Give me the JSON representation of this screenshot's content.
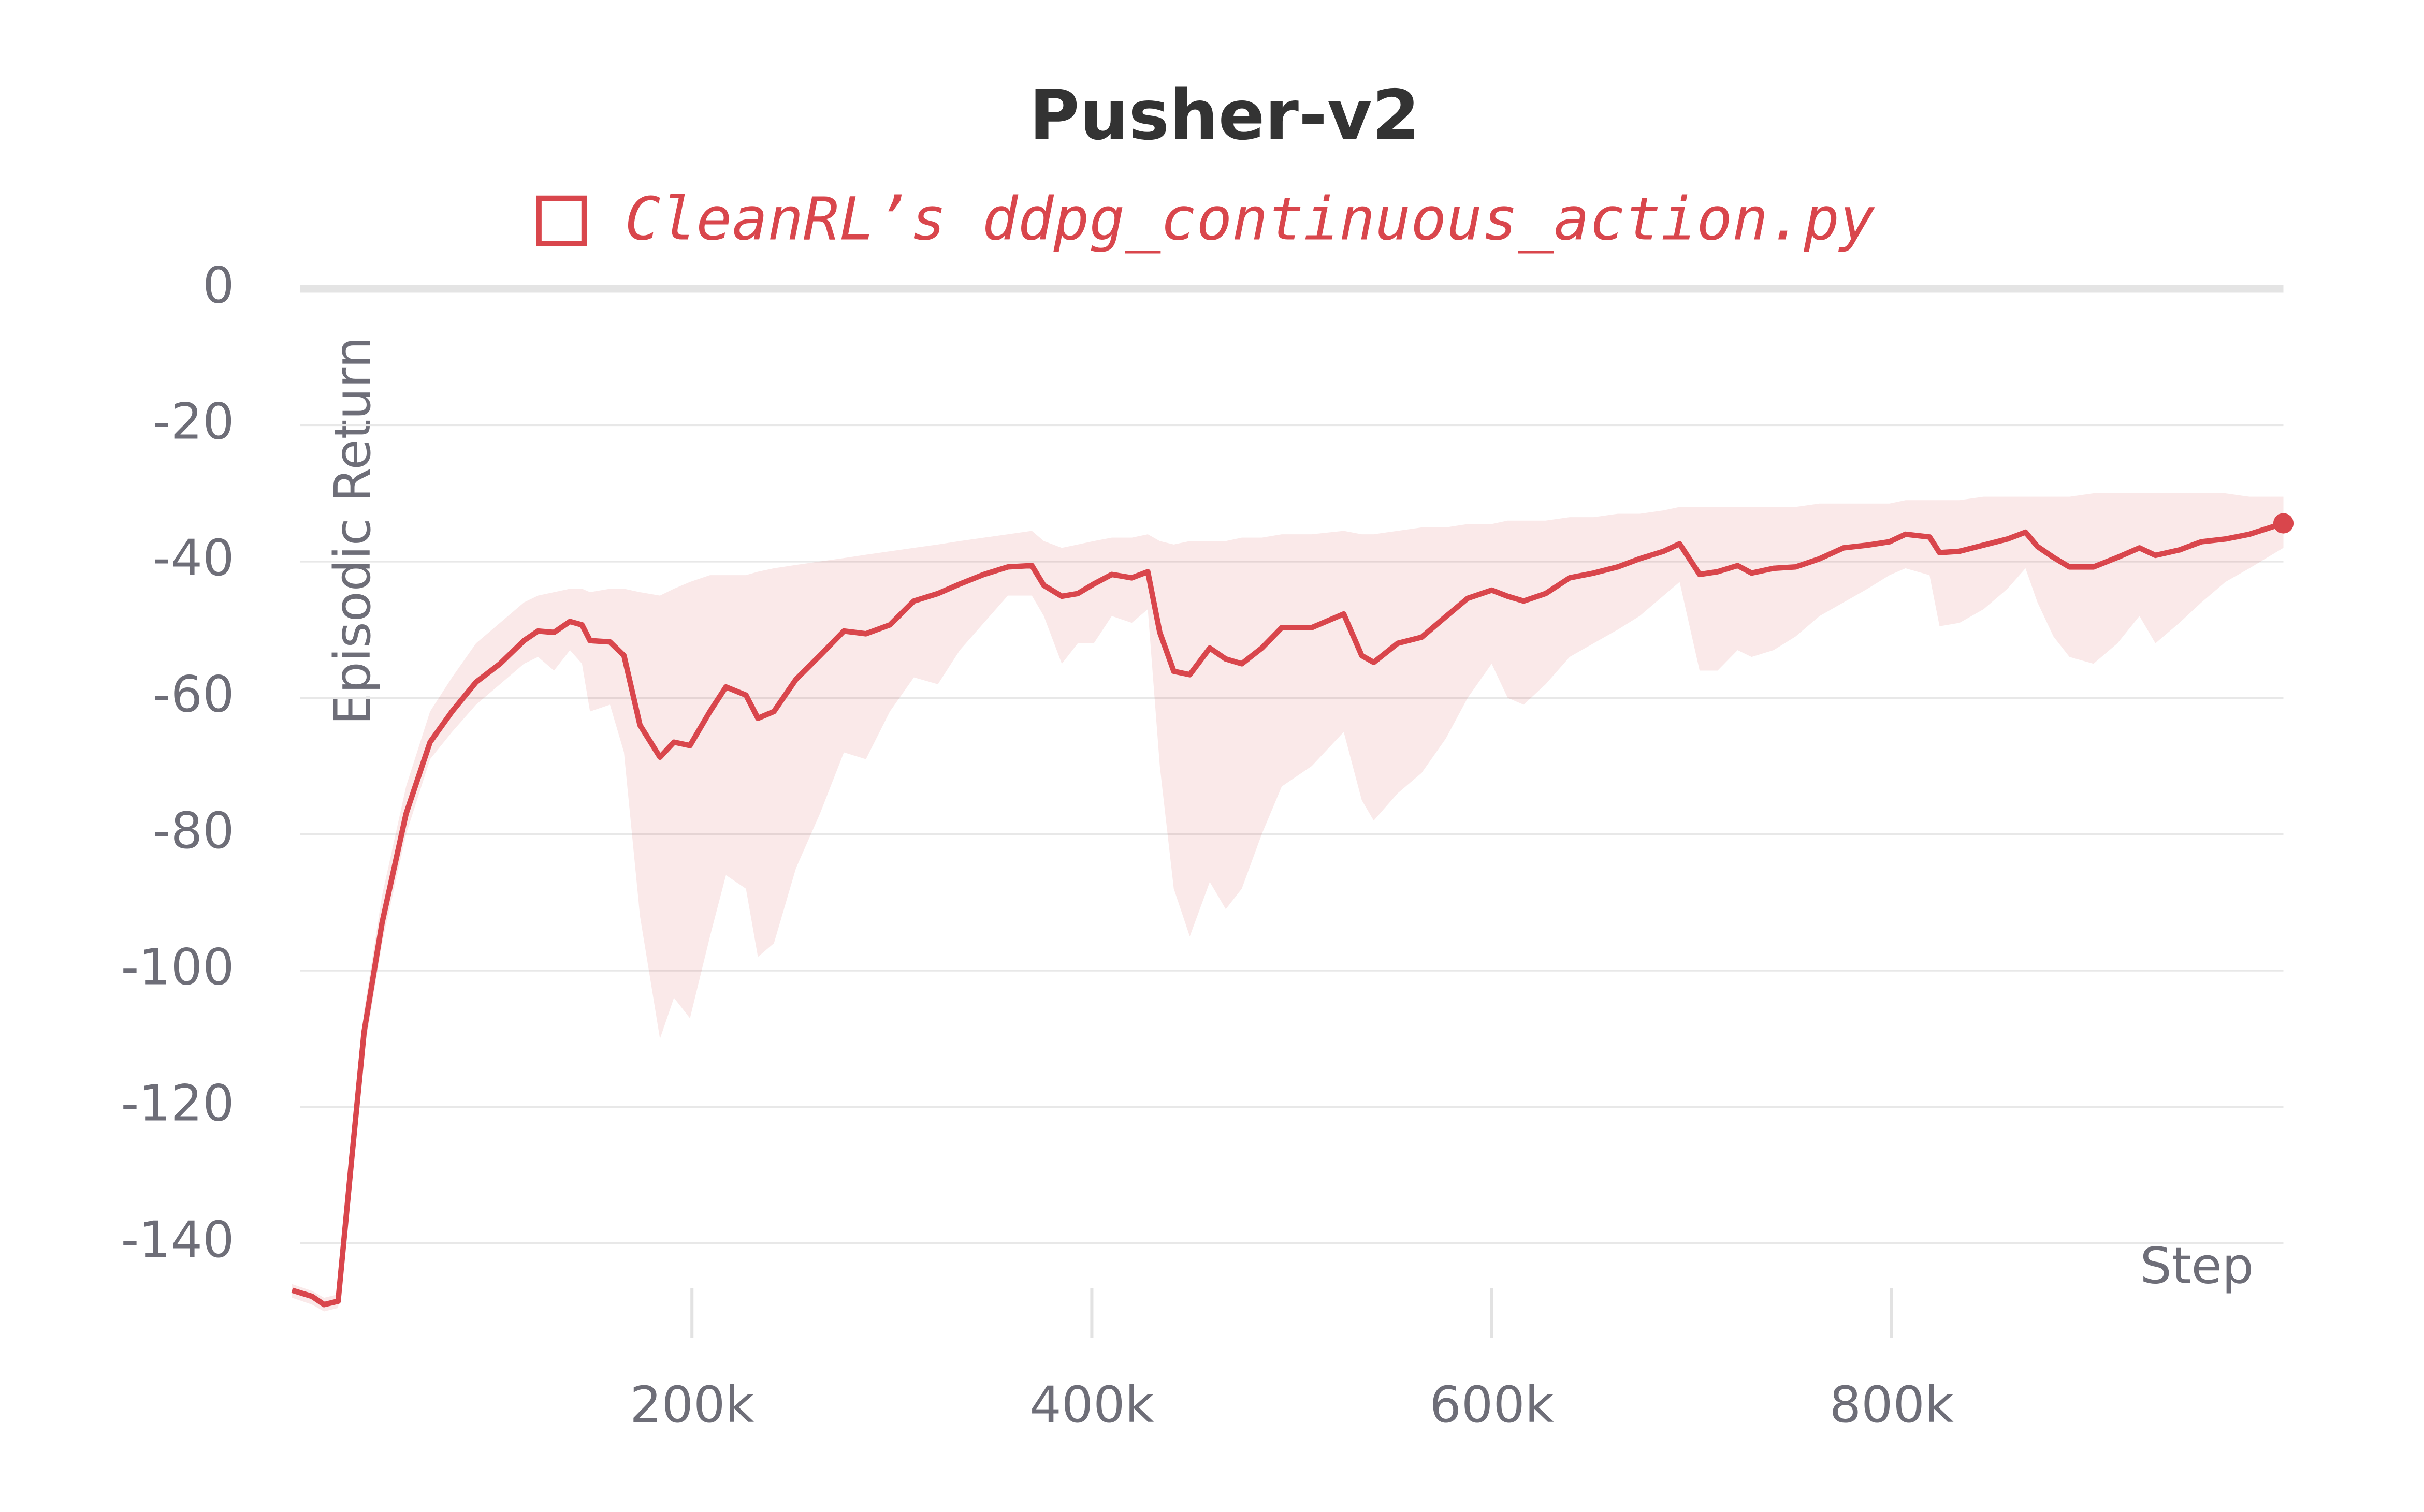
{
  "chart_data": {
    "type": "line",
    "title": "Pusher-v2",
    "x_label": "Step",
    "y_label": "Episodic Return",
    "x": [
      0,
      10000,
      16000,
      23000,
      30000,
      36000,
      45000,
      57000,
      69000,
      80000,
      92000,
      104000,
      116000,
      123000,
      131000,
      139000,
      145000,
      149000,
      159000,
      166000,
      174000,
      184000,
      191000,
      199000,
      209000,
      217000,
      227000,
      233000,
      241000,
      252000,
      264000,
      276000,
      287000,
      299000,
      311000,
      323000,
      334000,
      346000,
      358000,
      370000,
      376000,
      385000,
      393000,
      401000,
      410000,
      420000,
      428000,
      434000,
      441000,
      449000,
      459000,
      467000,
      475000,
      485000,
      495000,
      510000,
      526000,
      535000,
      541000,
      553000,
      565000,
      577000,
      588000,
      600000,
      608000,
      616000,
      627000,
      639000,
      651000,
      663000,
      674000,
      686000,
      694000,
      704000,
      713000,
      723000,
      730000,
      741000,
      752000,
      764000,
      776000,
      788000,
      799000,
      807000,
      819000,
      824000,
      834000,
      846000,
      858000,
      867000,
      873000,
      881000,
      889000,
      901000,
      913000,
      924000,
      932000,
      944000,
      955000,
      967000,
      979000,
      996000
    ],
    "series": [
      {
        "name": "CleanRL’s ddpg_continuous_action.py",
        "color": "#d9464c",
        "values": [
          -146.9,
          -147.8,
          -149,
          -148.5,
          -127,
          -109,
          -93,
          -77,
          -66.5,
          -62,
          -57.7,
          -55,
          -51.6,
          -50.2,
          -50.4,
          -48.8,
          -49.3,
          -51.6,
          -51.8,
          -53.8,
          -64,
          -68.7,
          -66.5,
          -67,
          -62,
          -58.4,
          -59.6,
          -63,
          -62,
          -57.3,
          -53.8,
          -50.2,
          -50.6,
          -49.3,
          -45.8,
          -44.7,
          -43.3,
          -41.9,
          -40.8,
          -40.6,
          -43.5,
          -45.1,
          -44.7,
          -43.3,
          -41.9,
          -42.4,
          -41.5,
          -50.4,
          -56.1,
          -56.6,
          -52.7,
          -54.3,
          -55,
          -52.7,
          -49.7,
          -49.7,
          -47.7,
          -53.8,
          -54.8,
          -52,
          -51.1,
          -48.1,
          -45.4,
          -44.2,
          -45.1,
          -45.8,
          -44.7,
          -42.4,
          -41.7,
          -40.8,
          -39.6,
          -38.5,
          -37.4,
          -41.9,
          -41.5,
          -40.6,
          -41.7,
          -41,
          -40.8,
          -39.6,
          -38,
          -37.6,
          -37.1,
          -36,
          -36.4,
          -38.7,
          -38.5,
          -37.6,
          -36.7,
          -35.7,
          -37.8,
          -39.4,
          -40.8,
          -40.8,
          -39.4,
          -38,
          -39.1,
          -38.3,
          -37.1,
          -36.7,
          -36,
          -34.4
        ],
        "upper": [
          -146,
          -147,
          -148,
          -147.5,
          -124,
          -106,
          -89,
          -73,
          -62,
          -57,
          -52,
          -49,
          -46,
          -45,
          -44.5,
          -44,
          -44,
          -44.5,
          -44,
          -44,
          -44.5,
          -45,
          -44,
          -43,
          -42,
          -42,
          -42,
          -41.5,
          -41,
          -40.5,
          -40,
          -39.5,
          -39,
          -38.5,
          -38,
          -37.5,
          -37,
          -36.5,
          -36,
          -35.5,
          -37,
          -38,
          -37.5,
          -37,
          -36.5,
          -36.5,
          -36,
          -37,
          -37.5,
          -37,
          -37,
          -37,
          -36.5,
          -36.5,
          -36,
          -36,
          -35.5,
          -36,
          -36,
          -35.5,
          -35,
          -35,
          -34.5,
          -34.5,
          -34,
          -34,
          -34,
          -33.5,
          -33.5,
          -33,
          -33,
          -32.5,
          -32,
          -32,
          -32,
          -32,
          -32,
          -32,
          -32,
          -31.5,
          -31.5,
          -31.5,
          -31.5,
          -31,
          -31,
          -31,
          -31,
          -30.5,
          -30.5,
          -30.5,
          -30.5,
          -30.5,
          -30.5,
          -30,
          -30,
          -30,
          -30,
          -30,
          -30,
          -30,
          -30.5,
          -30.5
        ],
        "lower": [
          -148,
          -149,
          -150,
          -149.5,
          -130,
          -112,
          -96,
          -80,
          -69,
          -65,
          -61,
          -58,
          -55,
          -54,
          -56,
          -53,
          -55,
          -62,
          -61,
          -68,
          -92,
          -110,
          -104,
          -107,
          -95,
          -86,
          -88,
          -98,
          -96,
          -85,
          -77,
          -68,
          -69,
          -62,
          -57,
          -58,
          -53,
          -49,
          -45,
          -45,
          -48,
          -55,
          -52,
          -52,
          -48,
          -49,
          -47,
          -70,
          -88,
          -95,
          -87,
          -91,
          -88,
          -80,
          -73,
          -70,
          -65,
          -75,
          -78,
          -74,
          -71,
          -66,
          -60,
          -55,
          -60,
          -61,
          -58,
          -54,
          -52,
          -50,
          -48,
          -45,
          -43,
          -56,
          -56,
          -53,
          -54,
          -53,
          -51,
          -48,
          -46,
          -44,
          -42,
          -41,
          -42,
          -49.5,
          -49,
          -47,
          -44,
          -41,
          -46,
          -51,
          -54,
          -55,
          -52,
          -48,
          -52,
          -49,
          -46,
          -43,
          -41,
          -38
        ]
      }
    ],
    "xlim": [
      0,
      996000
    ],
    "ylim": [
      -150,
      0
    ],
    "xticks": [
      {
        "value": 200000,
        "label": "200k"
      },
      {
        "value": 400000,
        "label": "400k"
      },
      {
        "value": 600000,
        "label": "600k"
      },
      {
        "value": 800000,
        "label": "800k"
      }
    ],
    "yticks": [
      0,
      -20,
      -40,
      -60,
      -80,
      -100,
      -120,
      -140
    ],
    "grid": true
  }
}
